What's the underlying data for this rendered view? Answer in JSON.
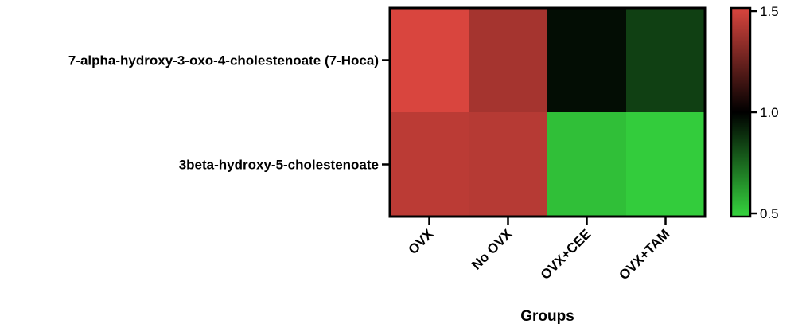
{
  "chart_data": {
    "type": "heatmap",
    "xlabel": "Groups",
    "columns": [
      "OVX",
      "No OVX",
      "OVX+CEE",
      "OVX+TAM"
    ],
    "rows": [
      "7-alpha-hydroxy-3-oxo-4-cholestenoate (7-Hoca)",
      "3beta-hydroxy-5-cholestenoate"
    ],
    "values": [
      [
        1.5,
        1.38,
        0.97,
        0.85
      ],
      [
        1.43,
        1.42,
        0.55,
        0.52
      ]
    ],
    "colorbar": {
      "min": 0.5,
      "max": 1.5,
      "center": 1.0,
      "ticks": [
        "1.5",
        "1.0",
        "0.5"
      ],
      "low_color": "#35D43E",
      "mid_color": "#000000",
      "high_color": "#D9453E"
    }
  }
}
